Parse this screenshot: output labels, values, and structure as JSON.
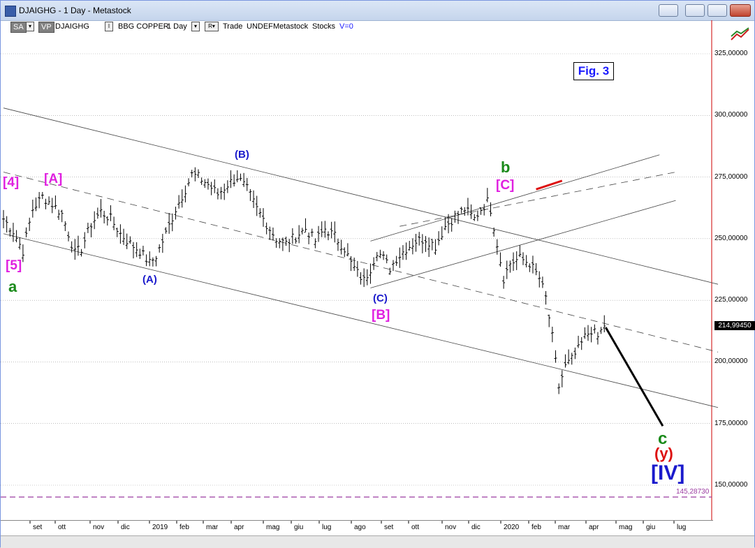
{
  "window": {
    "title": "DJAIGHG - 1 Day - Metastock",
    "controls": [
      "restore-alt",
      "minimize",
      "maximize",
      "close"
    ]
  },
  "toolbar": {
    "sa": "SA",
    "vp": "VP",
    "symbol": "DJAIGHG",
    "i_btn": "I",
    "security": "BBG COPPER",
    "period": "1 Day",
    "r_btn": "R",
    "mode": "Trade",
    "undef": "UNDEF",
    "metastock": "Metastock",
    "stocks": "Stocks",
    "v": "V=0"
  },
  "figure_label": "Fig. 3",
  "last_price": "214,99450",
  "ref_price": "145,28730",
  "chart_data": {
    "type": "ohlc",
    "title": "",
    "y_ticks": [
      "325,00000",
      "300,00000",
      "275,00000",
      "250,00000",
      "225,00000",
      "200,00000",
      "175,00000",
      "150,00000"
    ],
    "y_tick_values": [
      325,
      300,
      275,
      250,
      225,
      200,
      175,
      150
    ],
    "x_ticks": [
      "set",
      "ott",
      "nov",
      "dic",
      "2019",
      "feb",
      "mar",
      "apr",
      "mag",
      "giu",
      "lug",
      "ago",
      "set",
      "ott",
      "nov",
      "dic",
      "2020",
      "feb",
      "mar",
      "apr",
      "mag",
      "giu",
      "lug"
    ],
    "ylim": [
      140,
      340
    ],
    "grid": true,
    "price_path": [
      [
        0,
        258
      ],
      [
        3,
        253
      ],
      [
        6,
        245
      ],
      [
        9,
        262
      ],
      [
        12,
        267
      ],
      [
        15,
        264
      ],
      [
        18,
        260
      ],
      [
        20,
        252
      ],
      [
        22,
        244
      ],
      [
        24,
        246
      ],
      [
        27,
        256
      ],
      [
        30,
        261
      ],
      [
        33,
        258
      ],
      [
        36,
        252
      ],
      [
        39,
        248
      ],
      [
        42,
        245
      ],
      [
        45,
        240
      ],
      [
        47,
        243
      ],
      [
        50,
        252
      ],
      [
        53,
        262
      ],
      [
        56,
        270
      ],
      [
        58,
        276
      ],
      [
        60,
        275
      ],
      [
        63,
        272
      ],
      [
        66,
        268
      ],
      [
        69,
        272
      ],
      [
        72,
        275
      ],
      [
        75,
        270
      ],
      [
        78,
        262
      ],
      [
        81,
        256
      ],
      [
        84,
        250
      ],
      [
        87,
        248
      ],
      [
        90,
        251
      ],
      [
        93,
        254
      ],
      [
        96,
        249
      ],
      [
        99,
        254
      ],
      [
        102,
        251
      ],
      [
        105,
        246
      ],
      [
        107,
        240
      ],
      [
        109,
        236
      ],
      [
        111,
        233
      ],
      [
        113,
        238
      ],
      [
        115,
        245
      ],
      [
        117,
        242
      ],
      [
        119,
        238
      ],
      [
        121,
        242
      ],
      [
        124,
        246
      ],
      [
        127,
        249
      ],
      [
        130,
        250
      ],
      [
        133,
        247
      ],
      [
        136,
        255
      ],
      [
        139,
        259
      ],
      [
        142,
        262
      ],
      [
        145,
        258
      ],
      [
        147,
        262
      ],
      [
        149,
        265
      ],
      [
        150,
        262
      ],
      [
        152,
        248
      ],
      [
        154,
        234
      ],
      [
        156,
        240
      ],
      [
        159,
        242
      ],
      [
        162,
        240
      ],
      [
        165,
        234
      ],
      [
        167,
        226
      ],
      [
        169,
        210
      ],
      [
        171,
        190
      ],
      [
        173,
        198
      ],
      [
        175,
        201
      ],
      [
        177,
        205
      ],
      [
        179,
        210
      ],
      [
        181,
        213
      ],
      [
        183,
        210
      ],
      [
        185,
        215
      ]
    ],
    "projection_end_value": 174,
    "annotations": [
      {
        "text": "[4]",
        "color": "#e020e0"
      },
      {
        "text": "[A]",
        "color": "#e020e0"
      },
      {
        "text": "(B)",
        "color": "#1a1acc"
      },
      {
        "text": "b",
        "color": "#1a8a1a"
      },
      {
        "text": "[C]",
        "color": "#e020e0"
      },
      {
        "text": "[5]",
        "color": "#e020e0"
      },
      {
        "text": "a",
        "color": "#1a8a1a"
      },
      {
        "text": "(A)",
        "color": "#1a1acc"
      },
      {
        "text": "(C)",
        "color": "#1a1acc"
      },
      {
        "text": "[B]",
        "color": "#e020e0"
      },
      {
        "text": "c",
        "color": "#1a8a1a"
      },
      {
        "text": "(y)",
        "color": "#dd1111"
      },
      {
        "text": "[IV]",
        "color": "#1a1acc"
      }
    ]
  },
  "colors": {
    "bars": "#000000",
    "magenta": "#e020e0",
    "blue": "#1a1acc",
    "green": "#1a8a1a",
    "red": "#dd1111",
    "ref_line": "#9a3aa0"
  }
}
